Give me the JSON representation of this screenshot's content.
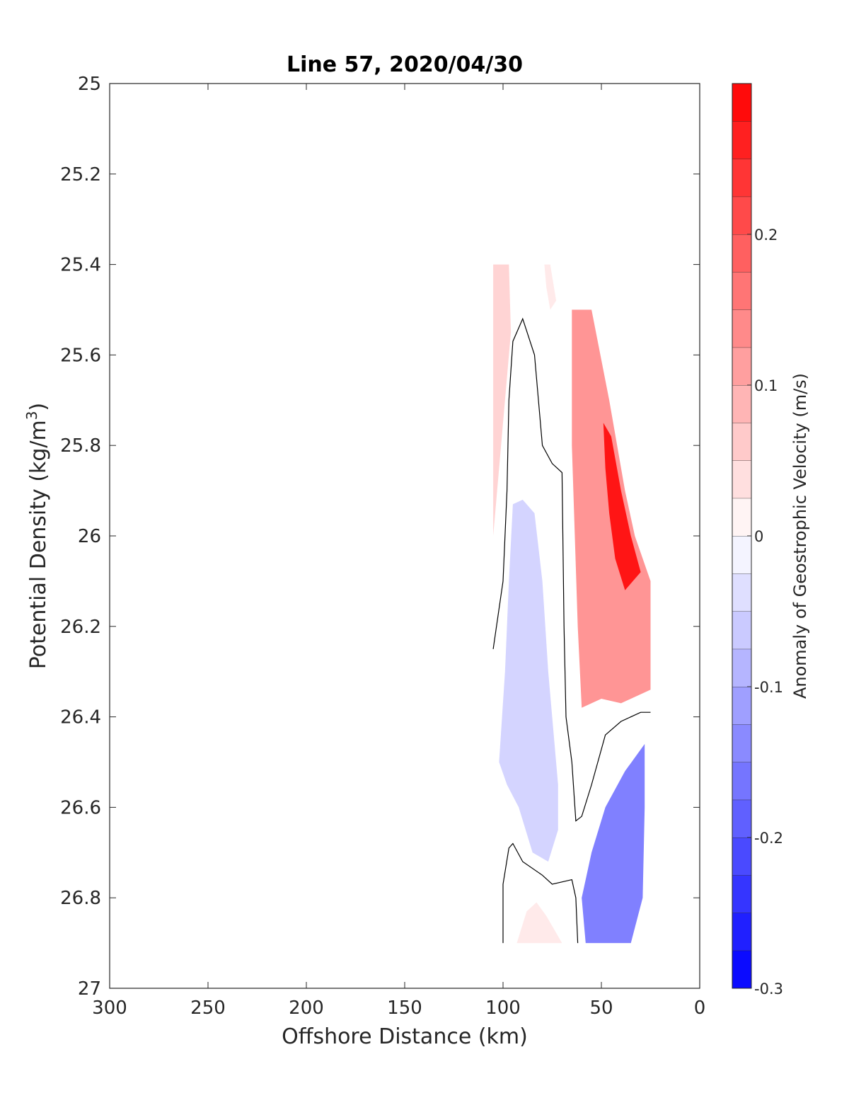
{
  "chart_data": {
    "type": "contour",
    "title": "Line 57, 2020/04/30",
    "xlabel": "Offshore Distance (km)",
    "ylabel_main": "Potential Density (kg/m",
    "ylabel_sup": "3",
    "ylabel_close": ")",
    "xlim": [
      300,
      0
    ],
    "ylim": [
      25,
      27
    ],
    "x_reversed": true,
    "y_reversed": true,
    "xticks": [
      300,
      250,
      200,
      150,
      100,
      50,
      0
    ],
    "yticks": [
      25,
      25.2,
      25.4,
      25.6,
      25.8,
      26,
      26.2,
      26.4,
      26.6,
      26.8,
      27
    ],
    "xtick_labels": [
      "300",
      "250",
      "200",
      "150",
      "100",
      "50",
      "0"
    ],
    "ytick_labels": [
      "25",
      "25.2",
      "25.4",
      "25.6",
      "25.8",
      "26",
      "26.2",
      "26.4",
      "26.6",
      "26.8",
      "27"
    ],
    "colorbar": {
      "label": "Anomaly of Geostrophic Velocity (m/s)",
      "range": [
        -0.3,
        0.3
      ],
      "step": 0.025,
      "ticks": [
        -0.3,
        -0.2,
        -0.1,
        0,
        0.1,
        0.2
      ],
      "tick_labels": [
        "-0.3",
        "-0.2",
        "-0.1",
        "0",
        "0.1",
        "0.2"
      ],
      "low_color": "#0000ff",
      "high_color": "#ff0000"
    },
    "regions": [
      {
        "name": "offshore-positive-strip",
        "value": 0.05,
        "points": [
          [
            105,
            25.4
          ],
          [
            97,
            25.4
          ],
          [
            96,
            25.55
          ],
          [
            104,
            25.95
          ],
          [
            105,
            26.0
          ]
        ]
      },
      {
        "name": "upper-positive-wisp",
        "value": 0.025,
        "points": [
          [
            79,
            25.4
          ],
          [
            76,
            25.4
          ],
          [
            73,
            25.48
          ],
          [
            76,
            25.5
          ],
          [
            78,
            25.45
          ]
        ]
      },
      {
        "name": "nearshore-positive-jet",
        "value": 0.125,
        "points": [
          [
            65,
            25.5
          ],
          [
            55,
            25.5
          ],
          [
            46,
            25.7
          ],
          [
            38,
            25.9
          ],
          [
            33,
            26.0
          ],
          [
            25,
            26.1
          ],
          [
            25,
            26.34
          ],
          [
            40,
            26.37
          ],
          [
            50,
            26.36
          ],
          [
            60,
            26.38
          ],
          [
            62,
            26.2
          ],
          [
            65,
            25.8
          ]
        ]
      },
      {
        "name": "jet-core",
        "value": 0.275,
        "points": [
          [
            49,
            25.75
          ],
          [
            45,
            25.78
          ],
          [
            40,
            25.9
          ],
          [
            35,
            26.0
          ],
          [
            30,
            26.08
          ],
          [
            38,
            26.12
          ],
          [
            43,
            26.05
          ],
          [
            46,
            25.95
          ],
          [
            48,
            25.85
          ]
        ]
      },
      {
        "name": "mid-negative-lobe",
        "value": -0.05,
        "points": [
          [
            95,
            25.93
          ],
          [
            90,
            25.92
          ],
          [
            84,
            25.95
          ],
          [
            80,
            26.1
          ],
          [
            77,
            26.3
          ],
          [
            72,
            26.55
          ],
          [
            72,
            26.65
          ],
          [
            77,
            26.72
          ],
          [
            85,
            26.7
          ],
          [
            92,
            26.6
          ],
          [
            98,
            26.55
          ],
          [
            102,
            26.5
          ],
          [
            99,
            26.3
          ],
          [
            97,
            26.1
          ]
        ]
      },
      {
        "name": "deep-negative-wedge",
        "value": -0.15,
        "points": [
          [
            28,
            26.46
          ],
          [
            38,
            26.52
          ],
          [
            48,
            26.6
          ],
          [
            55,
            26.7
          ],
          [
            60,
            26.8
          ],
          [
            58,
            26.9
          ],
          [
            35,
            26.9
          ],
          [
            29,
            26.8
          ],
          [
            28,
            26.6
          ]
        ]
      },
      {
        "name": "deep-positive-blob",
        "value": 0.025,
        "points": [
          [
            93,
            26.9
          ],
          [
            88,
            26.83
          ],
          [
            83,
            26.81
          ],
          [
            78,
            26.84
          ],
          [
            70,
            26.9
          ]
        ]
      }
    ],
    "zero_contours": [
      {
        "name": "zero-contour-main",
        "points": [
          [
            105,
            26.25
          ],
          [
            100,
            26.1
          ],
          [
            98,
            25.9
          ],
          [
            97,
            25.7
          ],
          [
            95,
            25.57
          ],
          [
            90,
            25.52
          ],
          [
            84,
            25.6
          ],
          [
            80,
            25.8
          ],
          [
            75,
            25.84
          ],
          [
            70,
            25.86
          ],
          [
            69,
            26.2
          ],
          [
            68,
            26.4
          ],
          [
            65,
            26.5
          ],
          [
            63,
            26.63
          ],
          [
            60,
            26.62
          ],
          [
            55,
            26.55
          ],
          [
            48,
            26.44
          ],
          [
            40,
            26.41
          ],
          [
            30,
            26.39
          ],
          [
            25,
            26.39
          ]
        ]
      },
      {
        "name": "zero-contour-deep",
        "points": [
          [
            100,
            26.9
          ],
          [
            100,
            26.77
          ],
          [
            97,
            26.69
          ],
          [
            95,
            26.68
          ],
          [
            90,
            26.72
          ],
          [
            80,
            26.75
          ],
          [
            75,
            26.77
          ],
          [
            65,
            26.76
          ],
          [
            63,
            26.8
          ],
          [
            62,
            26.9
          ]
        ]
      }
    ]
  }
}
